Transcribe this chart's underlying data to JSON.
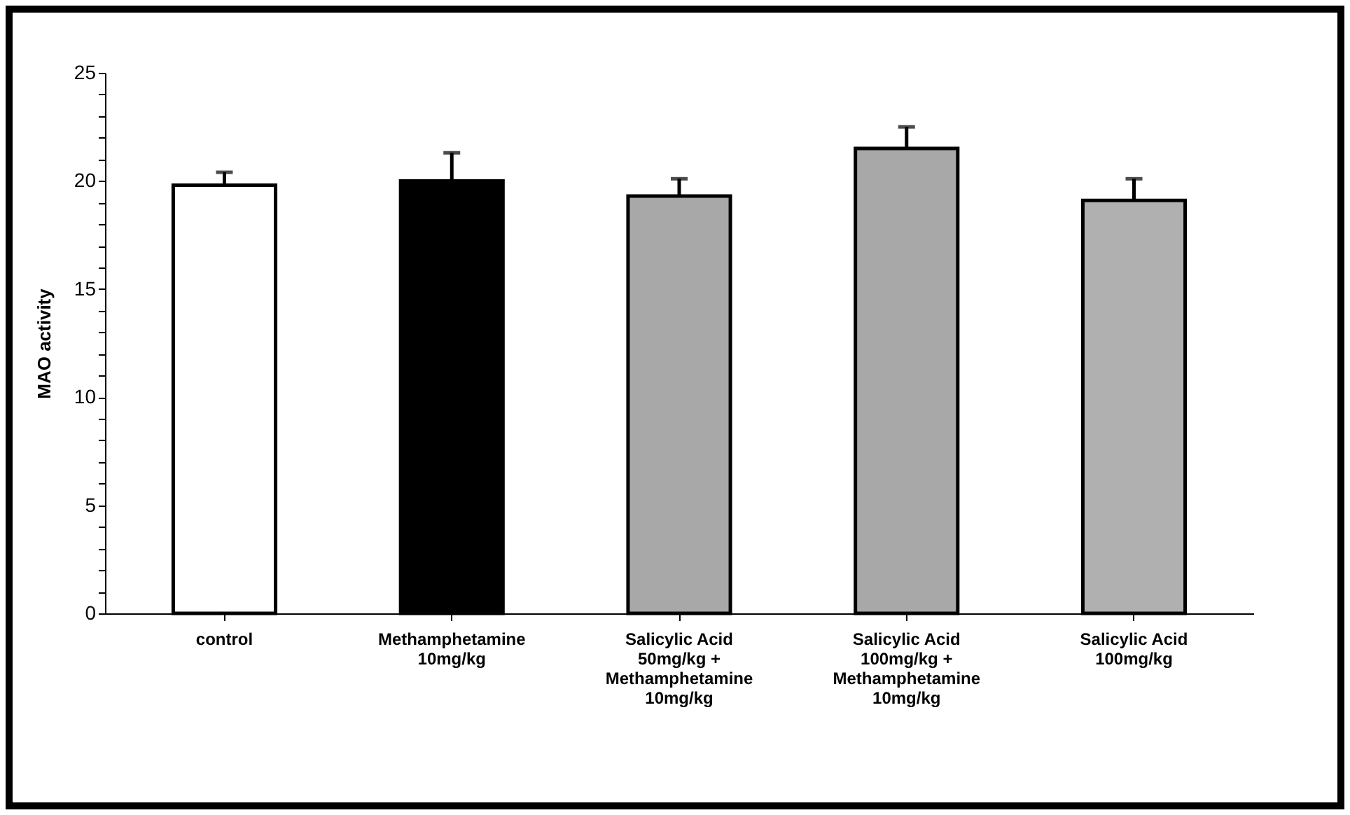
{
  "chart_data": {
    "type": "bar",
    "ylabel": "MAO activity",
    "categories": [
      "control",
      "Methamphetamine\n10mg/kg",
      "Salicylic Acid\n50mg/kg +\nMethamphetamine\n10mg/kg",
      "Salicylic Acid\n100mg/kg +\nMethamphetamine\n10mg/kg",
      "Salicylic Acid\n100mg/kg"
    ],
    "values": [
      19.8,
      20.0,
      19.3,
      21.5,
      19.1
    ],
    "errors": [
      [
        19.8,
        20.4
      ],
      [
        20.0,
        21.3
      ],
      [
        19.3,
        20.1
      ],
      [
        21.5,
        22.5
      ],
      [
        19.1,
        20.1
      ]
    ],
    "colors": [
      "#ffffff",
      "#000000",
      "#a8a8a8",
      "#a8a8a8",
      "#b0b0b0"
    ],
    "ylim": [
      0,
      25
    ],
    "yticks": [
      0,
      {
        "value": 1,
        "label": null
      },
      {
        "value": 2,
        "label": null
      },
      {
        "value": 3,
        "label": null
      },
      {
        "value": 4,
        "label": null
      },
      5,
      {
        "value": 6,
        "label": null
      },
      {
        "value": 7,
        "label": null
      },
      {
        "value": 8,
        "label": null
      },
      {
        "value": 9,
        "label": null
      },
      10,
      {
        "value": 11,
        "label": null
      },
      {
        "value": 12,
        "label": null
      },
      {
        "value": 13,
        "label": null
      },
      {
        "value": 14,
        "label": null
      },
      15,
      {
        "value": 16,
        "label": null
      },
      {
        "value": 17,
        "label": null
      },
      {
        "value": 18,
        "label": null
      },
      {
        "value": 19,
        "label": null
      },
      20,
      {
        "value": 21,
        "label": null
      },
      {
        "value": 22,
        "label": null
      },
      {
        "value": 23,
        "label": null
      },
      {
        "value": 24,
        "label": null
      },
      25
    ],
    "grid": false,
    "legend": false
  }
}
